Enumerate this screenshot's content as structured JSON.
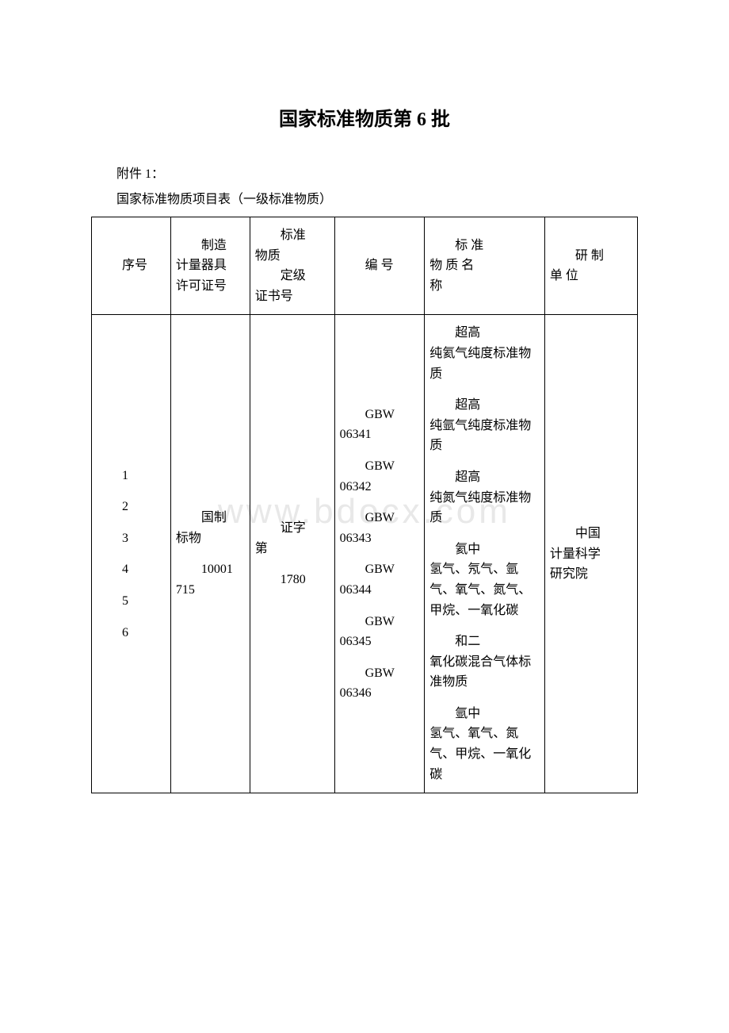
{
  "document": {
    "title": "国家标准物质第 6 批",
    "attachment_label": "附件 1：",
    "subtitle": "国家标准物质项目表（一级标准物质）",
    "watermark": "www.bdocx.com"
  },
  "table": {
    "headers": {
      "col1": "序号",
      "col2_line1": "制造",
      "col2_line2": "计量器具",
      "col2_line3": "许可证号",
      "col3_line1": "标准",
      "col3_line2": "物质",
      "col3_line3": "定级",
      "col3_line4": "证书号",
      "col4": "编 号",
      "col5_line1": "标 准",
      "col5_line2": "物 质 名",
      "col5_line3": "称",
      "col6_line1": "研 制",
      "col6_line2": "单 位"
    },
    "row1": {
      "seq": [
        "1",
        "2",
        "3",
        "4",
        "5",
        "6"
      ],
      "license_line1": "国制",
      "license_line2": "标物",
      "license_line3": "10001",
      "license_line4": "715",
      "cert_line1": "证字",
      "cert_line2": "第",
      "cert_line3": "1780",
      "codes": [
        "GBW",
        "06341",
        "GBW",
        "06342",
        "GBW",
        "06343",
        "GBW",
        "06344",
        "GBW",
        "06345",
        "GBW",
        "06346"
      ],
      "names": [
        "超高",
        "纯氦气纯度标准物质",
        "超高",
        "纯氩气纯度标准物质",
        "超高",
        "纯氮气纯度标准物质",
        "氦中",
        "氢气、氖气、氩气、氧气、氮气、甲烷、一氧化碳",
        "和二",
        "氧化碳混合气体标准物质",
        "氩中",
        "氢气、氧气、氮气、甲烷、一氧化碳"
      ],
      "org_line1": "中国",
      "org_line2": "计量科学",
      "org_line3": "研究院"
    }
  },
  "style": {
    "background_color": "#ffffff",
    "text_color": "#000000",
    "border_color": "#000000",
    "watermark_color": "#e8e8e8",
    "title_fontsize": 24,
    "body_fontsize": 16,
    "watermark_fontsize": 44
  }
}
